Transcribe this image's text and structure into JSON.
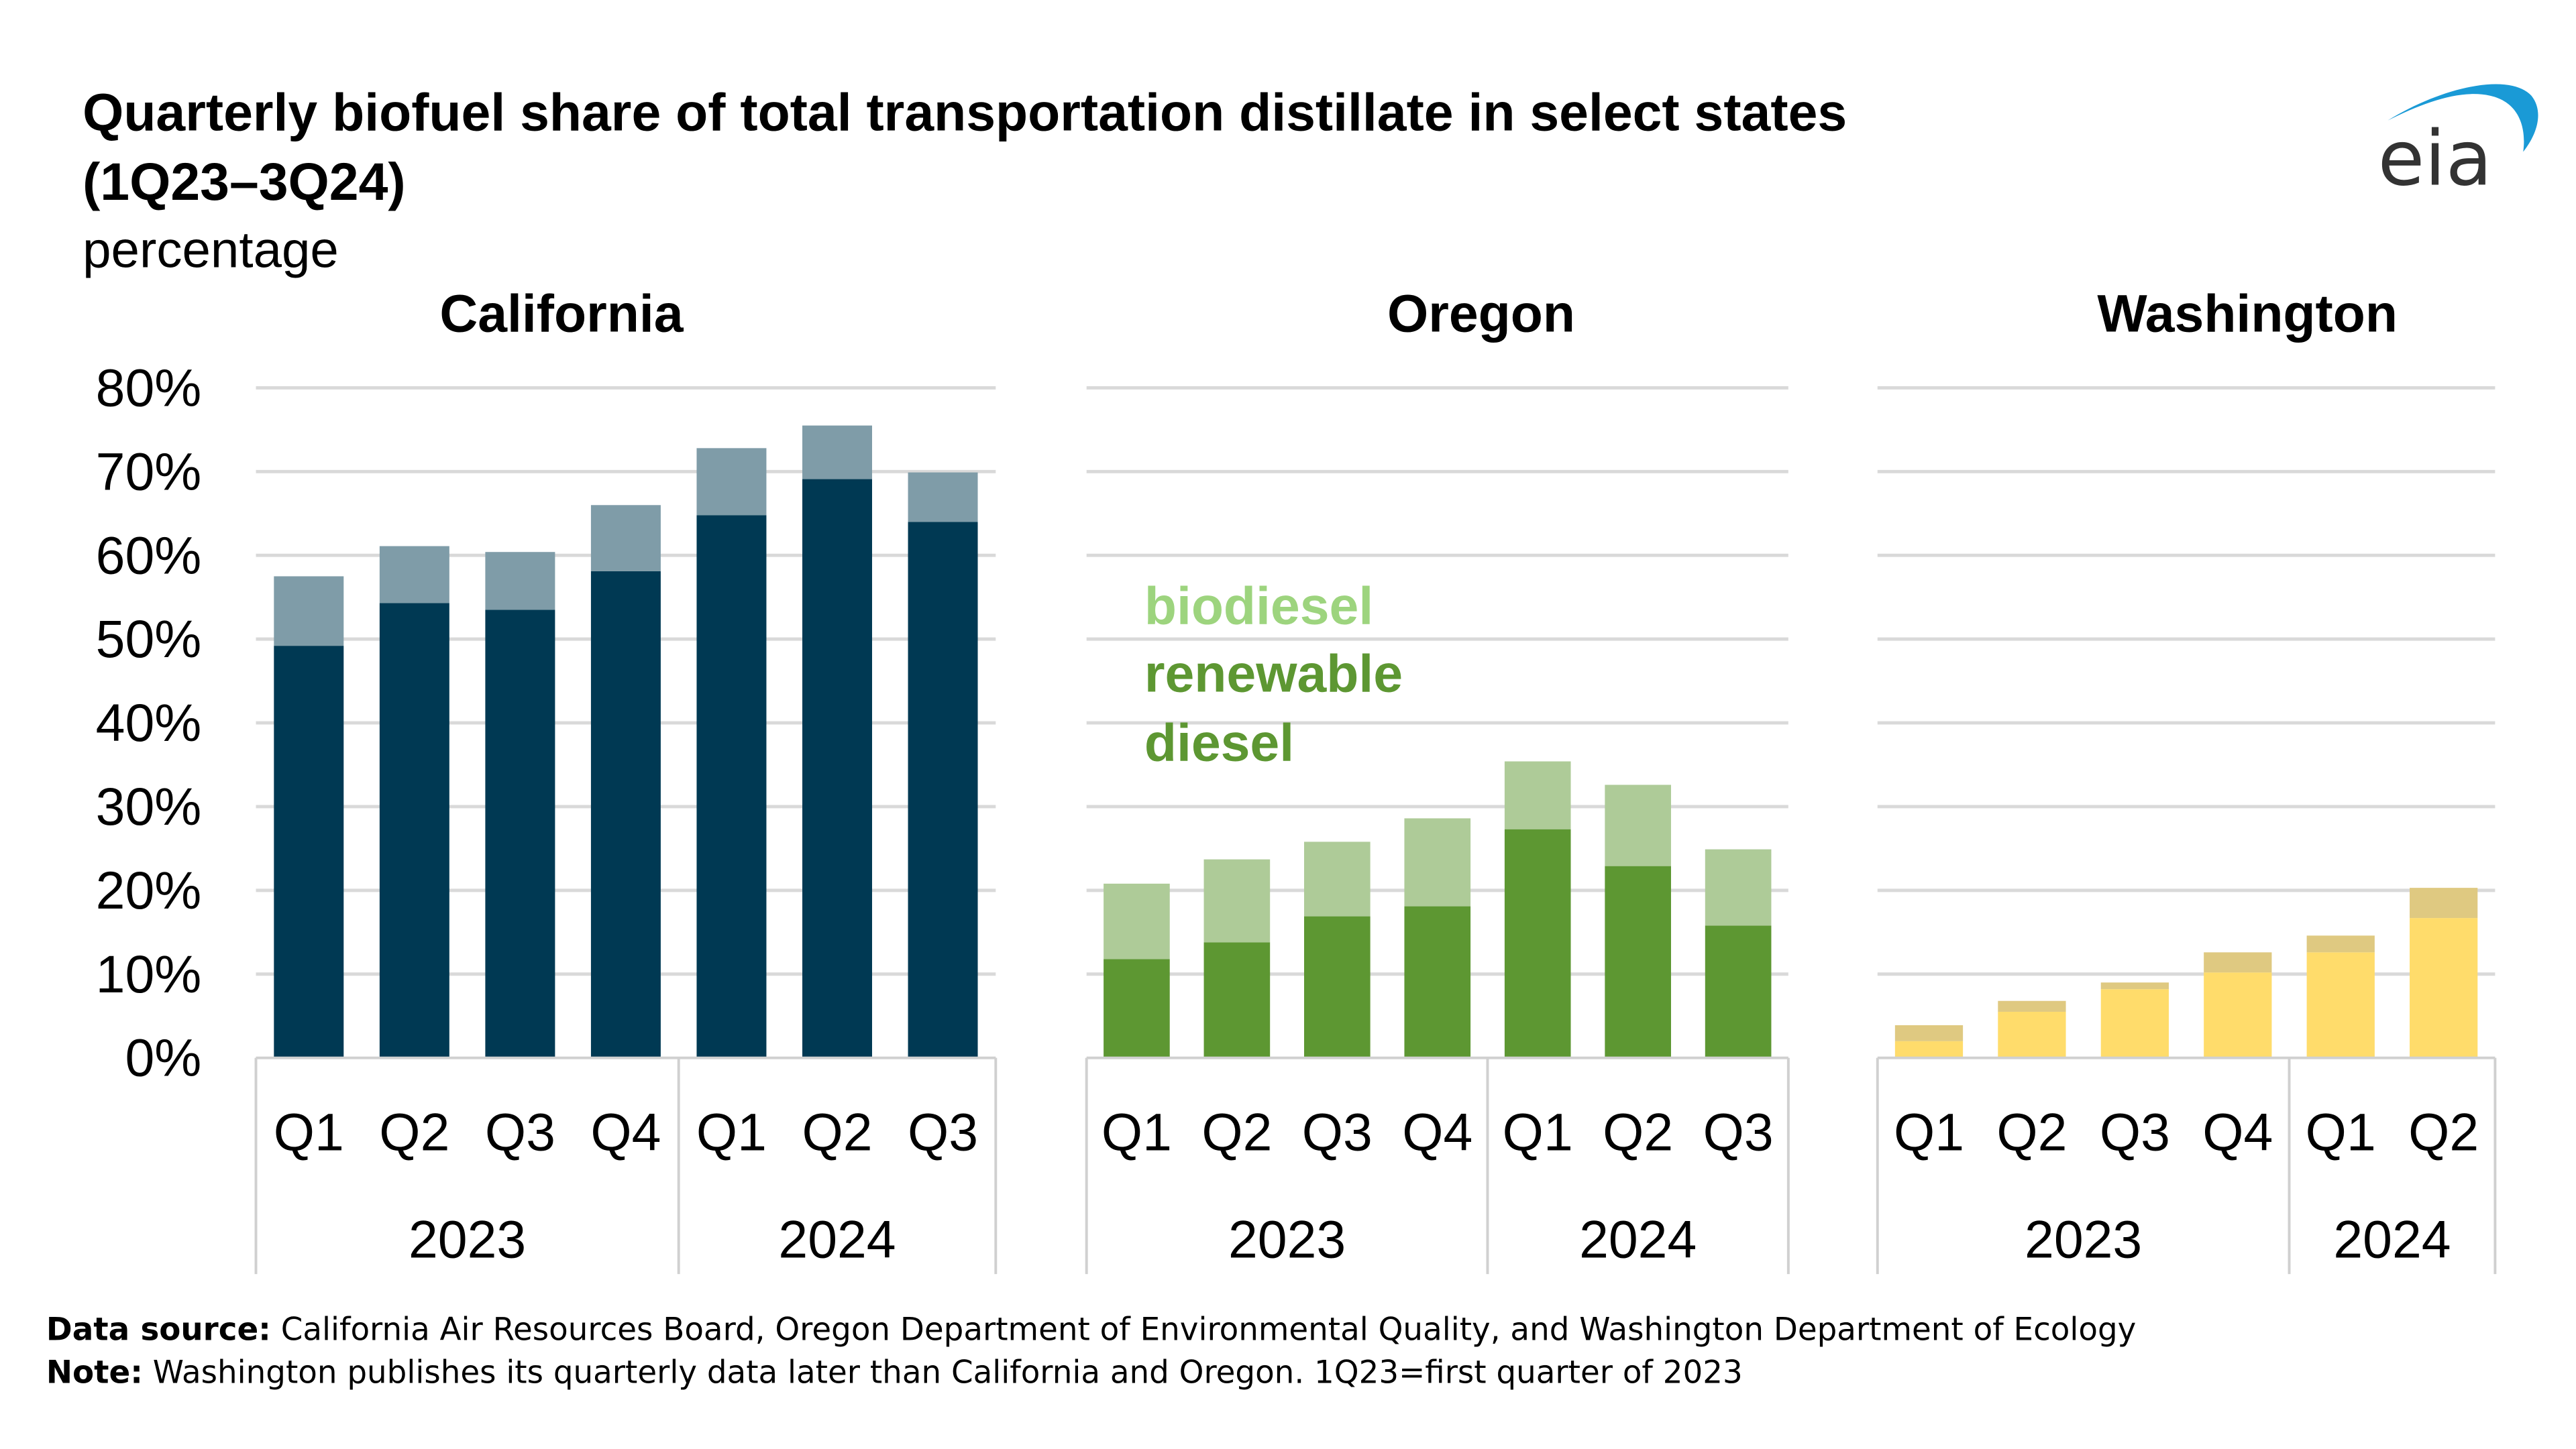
{
  "title": {
    "line1": "Quarterly biofuel share of total transportation distillate in select states",
    "line2": "(1Q23–3Q24)",
    "units": "percentage"
  },
  "logo": {
    "text": "eia",
    "arc_color": "#1a9ad6",
    "text_color": "#333333"
  },
  "legend": {
    "biodiesel": {
      "label": "biodiesel",
      "color": "#9dd47e"
    },
    "renewable_diesel": {
      "label_line1": "renewable",
      "label_line2": "diesel",
      "color": "#5d9732"
    }
  },
  "footer": {
    "source_label": "Data source:",
    "source_text": " California Air Resources Board, Oregon Department of Environmental Quality, and Washington Department of Ecology",
    "note_label": "Note:",
    "note_text": " Washington publishes its quarterly data later than California and Oregon. 1Q23=first quarter of 2023"
  },
  "chart_data": [
    {
      "type": "bar",
      "stacked": true,
      "title": "California",
      "ylabel": "percentage",
      "ylim": [
        0,
        80
      ],
      "yticks": [
        "0%",
        "10%",
        "20%",
        "30%",
        "40%",
        "50%",
        "60%",
        "70%",
        "80%"
      ],
      "grid": true,
      "categories": [
        "Q1",
        "Q2",
        "Q3",
        "Q4",
        "Q1",
        "Q2",
        "Q3"
      ],
      "groups": [
        {
          "label": "2023",
          "count": 4
        },
        {
          "label": "2024",
          "count": 3
        }
      ],
      "series": [
        {
          "name": "renewable diesel",
          "color": "#003953",
          "values": [
            49.2,
            54.3,
            53.5,
            58.1,
            64.8,
            69.1,
            64.0
          ]
        },
        {
          "name": "biodiesel",
          "color": "#7f9ca8",
          "values": [
            8.3,
            6.8,
            6.9,
            7.9,
            8.0,
            6.4,
            5.9
          ]
        }
      ]
    },
    {
      "type": "bar",
      "stacked": true,
      "title": "Oregon",
      "ylim": [
        0,
        80
      ],
      "grid": true,
      "categories": [
        "Q1",
        "Q2",
        "Q3",
        "Q4",
        "Q1",
        "Q2",
        "Q3"
      ],
      "groups": [
        {
          "label": "2023",
          "count": 4
        },
        {
          "label": "2024",
          "count": 3
        }
      ],
      "series": [
        {
          "name": "renewable diesel",
          "color": "#5d9732",
          "values": [
            11.8,
            13.8,
            16.9,
            18.1,
            27.3,
            22.9,
            15.8
          ]
        },
        {
          "name": "biodiesel",
          "color": "#aecb98",
          "values": [
            9.0,
            9.9,
            8.9,
            10.5,
            8.1,
            9.7,
            9.1
          ]
        }
      ]
    },
    {
      "type": "bar",
      "stacked": true,
      "title": "Washington",
      "ylim": [
        0,
        80
      ],
      "grid": true,
      "categories": [
        "Q1",
        "Q2",
        "Q3",
        "Q4",
        "Q1",
        "Q2"
      ],
      "groups": [
        {
          "label": "2023",
          "count": 4
        },
        {
          "label": "2024",
          "count": 2
        }
      ],
      "series": [
        {
          "name": "renewable diesel",
          "color": "#ffdc6b",
          "values": [
            2.0,
            5.5,
            8.2,
            10.2,
            12.6,
            16.7
          ]
        },
        {
          "name": "biodiesel",
          "color": "#dfc981",
          "values": [
            1.9,
            1.3,
            0.8,
            2.4,
            2.0,
            3.6
          ]
        }
      ]
    }
  ]
}
